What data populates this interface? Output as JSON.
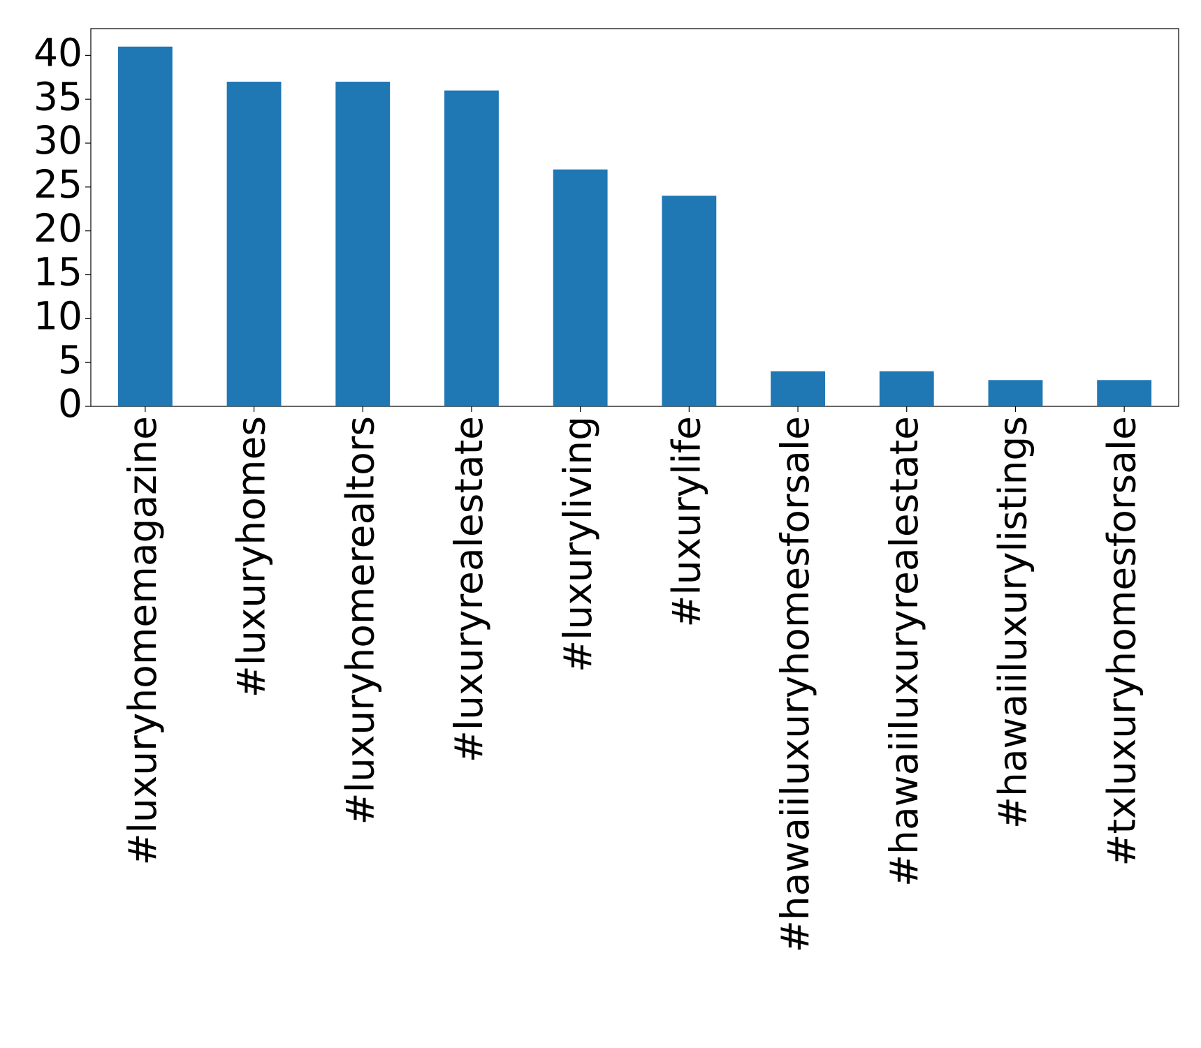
{
  "chart_data": {
    "type": "bar",
    "categories": [
      "#luxuryhomemagazine",
      "#luxuryhomes",
      "#luxuryhomerealtors",
      "#luxuryrealestate",
      "#luxuryliving",
      "#luxurylife",
      "#hawaiiluxuryhomesforsale",
      "#hawaiiluxuryrealestate",
      "#hawaiiluxurylistings",
      "#txluxuryhomesforsale"
    ],
    "values": [
      41,
      37,
      37,
      36,
      27,
      24,
      4,
      4,
      3,
      3
    ],
    "color": "#1f77b4",
    "ylim": [
      0,
      43.05
    ],
    "yticks": [
      0,
      5,
      10,
      15,
      20,
      25,
      30,
      35,
      40
    ],
    "grid": false
  }
}
